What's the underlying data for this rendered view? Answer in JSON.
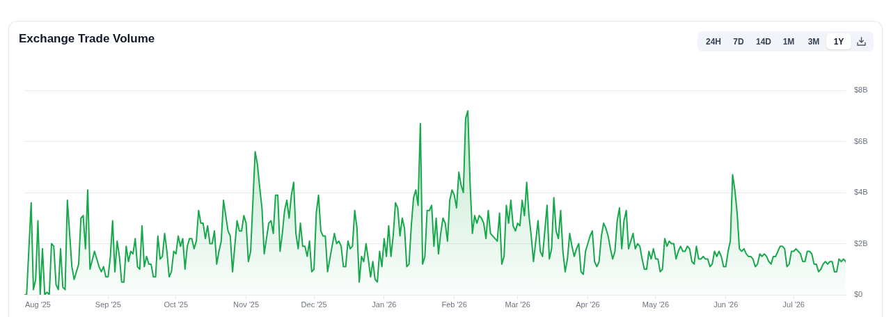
{
  "chart_data": {
    "type": "area",
    "title": "Exchange Trade Volume",
    "annotations": [
      "24H",
      "7D",
      "14D",
      "1M",
      "3M",
      "1Y"
    ],
    "color": "#16a84a",
    "x": [
      "2025-07-26",
      "2025-07-27",
      "2025-07-29",
      "2025-07-30",
      "2025-07-31",
      "2025-08-01",
      "2025-08-02",
      "2025-08-03",
      "2025-08-04",
      "2025-08-05",
      "2025-08-06",
      "2025-08-07",
      "2025-08-08",
      "2025-08-09",
      "2025-08-10",
      "2025-08-11",
      "2025-08-12",
      "2025-08-13",
      "2025-08-14",
      "2025-08-16",
      "2025-08-17",
      "2025-08-19",
      "2025-08-20",
      "2025-08-21",
      "2025-08-22",
      "2025-08-23",
      "2025-08-24",
      "2025-08-26",
      "2025-08-28",
      "2025-08-29",
      "2025-08-30",
      "2025-08-31",
      "2025-09-01",
      "2025-09-02",
      "2025-09-03",
      "2025-09-04",
      "2025-09-05",
      "2025-09-06",
      "2025-09-07",
      "2025-09-08",
      "2025-09-09",
      "2025-09-10",
      "2025-09-11",
      "2025-09-12",
      "2025-09-13",
      "2025-09-14",
      "2025-09-15",
      "2025-09-16",
      "2025-09-17",
      "2025-09-18",
      "2025-09-19",
      "2025-09-20",
      "2025-09-21",
      "2025-09-22",
      "2025-09-23",
      "2025-09-24",
      "2025-09-25",
      "2025-09-26",
      "2025-09-27",
      "2025-09-28",
      "2025-09-29",
      "2025-09-30",
      "2025-10-01",
      "2025-10-02",
      "2025-10-03",
      "2025-10-04",
      "2025-10-05",
      "2025-10-06",
      "2025-10-07",
      "2025-10-08",
      "2025-10-09",
      "2025-10-10",
      "2025-10-11",
      "2025-10-12",
      "2025-10-13",
      "2025-10-14",
      "2025-10-15",
      "2025-10-16",
      "2025-10-17",
      "2025-10-18",
      "2025-10-19",
      "2025-10-20",
      "2025-10-21",
      "2025-10-22",
      "2025-10-23",
      "2025-10-24",
      "2025-10-25",
      "2025-10-26",
      "2025-10-27",
      "2025-10-28",
      "2025-10-29",
      "2025-10-30",
      "2025-10-31",
      "2025-11-01",
      "2025-11-02",
      "2025-11-03",
      "2025-11-05",
      "2025-11-06",
      "2025-11-07",
      "2025-11-08",
      "2025-11-09",
      "2025-11-10",
      "2025-11-11",
      "2025-11-12",
      "2025-11-13",
      "2025-11-14",
      "2025-11-15",
      "2025-11-16",
      "2025-11-17",
      "2025-11-18",
      "2025-11-19",
      "2025-11-20",
      "2025-11-21",
      "2025-11-22",
      "2025-11-23",
      "2025-11-24",
      "2025-11-25",
      "2025-11-26",
      "2025-11-27",
      "2025-11-28",
      "2025-11-29",
      "2025-11-30",
      "2025-12-01",
      "2025-12-02",
      "2025-12-03",
      "2025-12-04",
      "2025-12-05",
      "2025-12-06",
      "2025-12-07",
      "2025-12-08",
      "2025-12-09",
      "2025-12-10",
      "2025-12-11",
      "2025-12-12",
      "2025-12-13",
      "2025-12-14",
      "2025-12-15",
      "2025-12-16",
      "2025-12-17",
      "2025-12-18",
      "2025-12-19",
      "2025-12-20",
      "2025-12-21",
      "2025-12-22",
      "2025-12-23",
      "2025-12-24",
      "2025-12-25",
      "2025-12-26",
      "2025-12-27",
      "2025-12-28",
      "2025-12-29",
      "2025-12-30",
      "2025-12-31",
      "2026-01-01",
      "2026-01-02",
      "2026-01-03",
      "2026-01-04",
      "2026-01-05",
      "2026-01-06",
      "2026-01-07",
      "2026-01-08",
      "2026-01-09",
      "2026-01-10",
      "2026-01-11",
      "2026-01-12",
      "2026-01-13",
      "2026-01-14",
      "2026-01-15",
      "2026-01-16",
      "2026-01-17",
      "2026-01-18",
      "2026-01-19",
      "2026-01-20",
      "2026-01-21",
      "2026-01-22",
      "2026-01-23",
      "2026-01-24",
      "2026-01-25",
      "2026-01-26",
      "2026-01-27",
      "2026-01-28",
      "2026-01-29",
      "2026-01-30",
      "2026-01-31",
      "2026-02-01",
      "2026-02-02",
      "2026-02-03",
      "2026-02-04",
      "2026-02-05",
      "2026-02-06",
      "2026-02-07",
      "2026-02-08",
      "2026-02-09",
      "2026-02-10",
      "2026-02-11",
      "2026-02-12",
      "2026-02-13",
      "2026-02-14",
      "2026-02-15",
      "2026-02-16",
      "2026-02-17",
      "2026-02-18",
      "2026-02-19",
      "2026-02-20",
      "2026-02-21",
      "2026-02-22",
      "2026-02-23",
      "2026-02-24",
      "2026-02-25",
      "2026-02-26",
      "2026-02-27",
      "2026-02-28",
      "2026-03-01",
      "2026-03-02",
      "2026-03-03",
      "2026-03-04",
      "2026-03-05",
      "2026-03-06",
      "2026-03-07",
      "2026-03-08",
      "2026-03-09",
      "2026-03-10",
      "2026-03-11",
      "2026-03-12",
      "2026-03-13",
      "2026-03-14",
      "2026-03-15",
      "2026-03-16",
      "2026-03-17",
      "2026-03-18",
      "2026-03-19",
      "2026-03-20",
      "2026-03-21",
      "2026-03-22",
      "2026-03-23",
      "2026-03-24",
      "2026-03-25",
      "2026-03-26",
      "2026-03-27",
      "2026-03-28",
      "2026-03-29",
      "2026-03-30",
      "2026-03-31",
      "2026-04-01",
      "2026-04-02",
      "2026-04-03",
      "2026-04-04",
      "2026-04-05",
      "2026-04-06",
      "2026-04-07",
      "2026-04-08",
      "2026-04-09",
      "2026-04-10",
      "2026-04-11",
      "2026-04-12",
      "2026-04-13",
      "2026-04-14",
      "2026-04-15",
      "2026-04-16",
      "2026-04-17",
      "2026-04-18",
      "2026-04-19",
      "2026-04-20",
      "2026-04-21",
      "2026-04-22",
      "2026-04-23",
      "2026-04-24",
      "2026-04-25",
      "2026-04-26",
      "2026-04-27",
      "2026-04-28",
      "2026-04-29",
      "2026-04-30",
      "2026-05-01",
      "2026-05-02",
      "2026-05-03",
      "2026-05-04",
      "2026-05-05",
      "2026-05-06",
      "2026-05-07",
      "2026-05-08",
      "2026-05-09",
      "2026-05-10",
      "2026-05-11",
      "2026-05-12",
      "2026-05-13",
      "2026-05-14",
      "2026-05-15",
      "2026-05-16",
      "2026-05-17",
      "2026-05-18",
      "2026-05-19",
      "2026-05-20",
      "2026-05-21",
      "2026-05-22",
      "2026-05-23",
      "2026-05-24",
      "2026-05-25",
      "2026-05-26",
      "2026-05-27",
      "2026-05-28",
      "2026-05-29",
      "2026-05-30",
      "2026-05-31",
      "2026-06-01",
      "2026-06-02",
      "2026-06-03",
      "2026-06-04",
      "2026-06-05",
      "2026-06-06",
      "2026-06-07",
      "2026-06-08",
      "2026-06-09",
      "2026-06-10",
      "2026-06-11",
      "2026-06-12",
      "2026-06-13",
      "2026-06-14",
      "2026-06-15",
      "2026-06-16",
      "2026-06-17",
      "2026-06-18",
      "2026-06-19",
      "2026-06-20",
      "2026-06-21",
      "2026-06-22",
      "2026-06-23",
      "2026-06-24",
      "2026-06-25",
      "2026-06-26",
      "2026-06-27",
      "2026-06-28",
      "2026-06-29",
      "2026-06-30",
      "2026-07-01",
      "2026-07-02",
      "2026-07-03",
      "2026-07-04",
      "2026-07-05",
      "2026-07-06",
      "2026-07-07",
      "2026-07-08",
      "2026-07-09",
      "2026-07-10",
      "2026-07-11",
      "2026-07-12",
      "2026-07-13",
      "2026-07-14",
      "2026-07-15",
      "2026-07-16",
      "2026-07-17",
      "2026-07-18",
      "2026-07-19",
      "2026-07-20",
      "2026-07-21",
      "2026-07-22",
      "2026-07-23",
      "2026-07-24"
    ],
    "values": [
      0.0,
      0.0,
      3.6,
      0.2,
      0.6,
      2.9,
      0.0,
      1.8,
      0.0,
      0.1,
      0.0,
      2.0,
      1.9,
      0.4,
      0.2,
      1.8,
      0.3,
      0.2,
      3.7,
      1.1,
      0.6,
      1.2,
      3.0,
      3.1,
      1.8,
      4.1,
      1.0,
      1.7,
      1.1,
      0.9,
      1.1,
      0.7,
      0.7,
      1.5,
      2.9,
      0.9,
      2.1,
      1.5,
      0.5,
      0.5,
      1.9,
      1.3,
      1.7,
      1.6,
      2.2,
      1.1,
      1.0,
      2.7,
      1.1,
      1.5,
      1.2,
      1.2,
      0.7,
      0.7,
      2.3,
      1.4,
      1.5,
      2.4,
      1.7,
      0.7,
      0.9,
      1.7,
      1.6,
      2.3,
      1.9,
      2.2,
      1.0,
      1.9,
      2.2,
      2.2,
      1.8,
      2.1,
      3.3,
      2.8,
      2.8,
      2.2,
      2.7,
      2.0,
      2.0,
      2.5,
      1.2,
      1.7,
      2.1,
      3.7,
      3.1,
      2.5,
      2.3,
      0.9,
      1.9,
      2.9,
      2.5,
      2.5,
      3.1,
      2.8,
      1.3,
      1.7,
      5.6,
      5.1,
      4.2,
      3.4,
      1.6,
      2.2,
      2.8,
      2.9,
      2.4,
      3.9,
      3.9,
      1.7,
      2.4,
      3.3,
      3.7,
      3.0,
      3.9,
      4.4,
      2.4,
      1.8,
      2.8,
      1.9,
      1.9,
      1.5,
      2.1,
      0.9,
      1.0,
      3.2,
      3.9,
      2.5,
      2.3,
      2.3,
      0.9,
      1.4,
      1.9,
      2.4,
      2.0,
      2.1,
      1.9,
      1.1,
      1.1,
      2.1,
      1.8,
      1.9,
      3.3,
      2.6,
      0.5,
      1.5,
      1.3,
      2.0,
      1.4,
      0.7,
      1.3,
      0.6,
      0.5,
      1.7,
      1.1,
      2.2,
      1.5,
      2.7,
      1.5,
      2.3,
      3.6,
      3.4,
      2.3,
      3.0,
      2.6,
      1.1,
      1.2,
      2.7,
      3.8,
      4.1,
      3.5,
      6.7,
      1.2,
      1.5,
      3.3,
      3.3,
      3.5,
      1.9,
      3.0,
      1.6,
      2.4,
      3.0,
      2.8,
      2.1,
      3.7,
      4.1,
      3.9,
      3.4,
      4.8,
      4.3,
      4.0,
      6.9,
      7.2,
      4.3,
      2.4,
      3.1,
      2.8,
      3.1,
      3.0,
      2.8,
      2.2,
      3.3,
      2.4,
      2.3,
      2.2,
      2.1,
      3.2,
      1.2,
      1.5,
      3.5,
      2.8,
      3.7,
      2.7,
      2.5,
      2.8,
      2.7,
      3.7,
      3.1,
      4.4,
      3.1,
      2.3,
      1.3,
      2.1,
      2.9,
      1.7,
      1.5,
      2.5,
      3.5,
      1.4,
      1.8,
      3.8,
      2.5,
      2.2,
      3.3,
      1.7,
      0.9,
      1.4,
      2.4,
      1.9,
      1.5,
      1.8,
      2.0,
      0.9,
      0.8,
      1.7,
      2.0,
      2.3,
      2.5,
      1.3,
      1.1,
      1.3,
      2.3,
      2.8,
      2.6,
      2.3,
      1.8,
      1.4,
      1.7,
      2.9,
      3.4,
      1.8,
      2.9,
      3.3,
      1.8,
      2.1,
      2.4,
      1.8,
      2.0,
      1.9,
      1.4,
      1.0,
      1.0,
      1.7,
      1.4,
      1.8,
      1.4,
      1.4,
      0.9,
      1.0,
      2.2,
      1.9,
      2.1,
      2.0,
      2.0,
      1.4,
      1.7,
      1.9,
      1.7,
      1.7,
      1.9,
      1.8,
      1.3,
      1.2,
      1.9,
      1.4,
      1.4,
      1.5,
      1.4,
      1.4,
      1.1,
      1.2,
      1.7,
      1.5,
      1.7,
      1.5,
      1.1,
      1.1,
      1.7,
      2.1,
      4.7,
      4.1,
      3.2,
      1.8,
      1.7,
      1.8,
      1.6,
      1.5,
      1.5,
      1.4,
      1.1,
      1.2,
      1.6,
      1.5,
      1.6,
      1.5,
      1.3,
      1.2,
      1.5,
      1.5,
      1.7,
      1.9,
      1.9,
      1.8,
      1.1,
      1.2,
      1.7,
      1.7,
      1.8,
      1.7,
      1.6,
      1.3,
      1.3,
      1.7,
      1.7,
      1.6,
      1.2,
      1.2,
      0.9,
      1.0,
      1.2,
      1.3,
      1.2,
      1.3,
      1.3,
      0.9,
      0.9,
      1.4,
      1.3,
      1.4,
      1.3
    ],
    "xlim": [
      "2025-07-26",
      "2026-07-24"
    ],
    "xticks": [
      {
        "value": "2025-08-01",
        "label": "Aug '25"
      },
      {
        "value": "2025-09-01",
        "label": "Sep '25"
      },
      {
        "value": "2025-10-01",
        "label": "Oct '25"
      },
      {
        "value": "2025-11-01",
        "label": "Nov '25"
      },
      {
        "value": "2025-12-01",
        "label": "Dec '25"
      },
      {
        "value": "2026-01-01",
        "label": "Jan '26"
      },
      {
        "value": "2026-02-01",
        "label": "Feb '26"
      },
      {
        "value": "2026-03-01",
        "label": "Mar '26"
      },
      {
        "value": "2026-04-01",
        "label": "Apr '26"
      },
      {
        "value": "2026-05-01",
        "label": "May '26"
      },
      {
        "value": "2026-06-01",
        "label": "Jun '26"
      },
      {
        "value": "2026-07-01",
        "label": "Jul '26"
      }
    ],
    "ylim": [
      0,
      8
    ],
    "yticks": [
      {
        "value": 0,
        "label": "$0"
      },
      {
        "value": 2,
        "label": "$2B"
      },
      {
        "value": 4,
        "label": "$4B"
      },
      {
        "value": 6,
        "label": "$6B"
      },
      {
        "value": 8,
        "label": "$8B"
      }
    ],
    "grid": "y"
  }
}
